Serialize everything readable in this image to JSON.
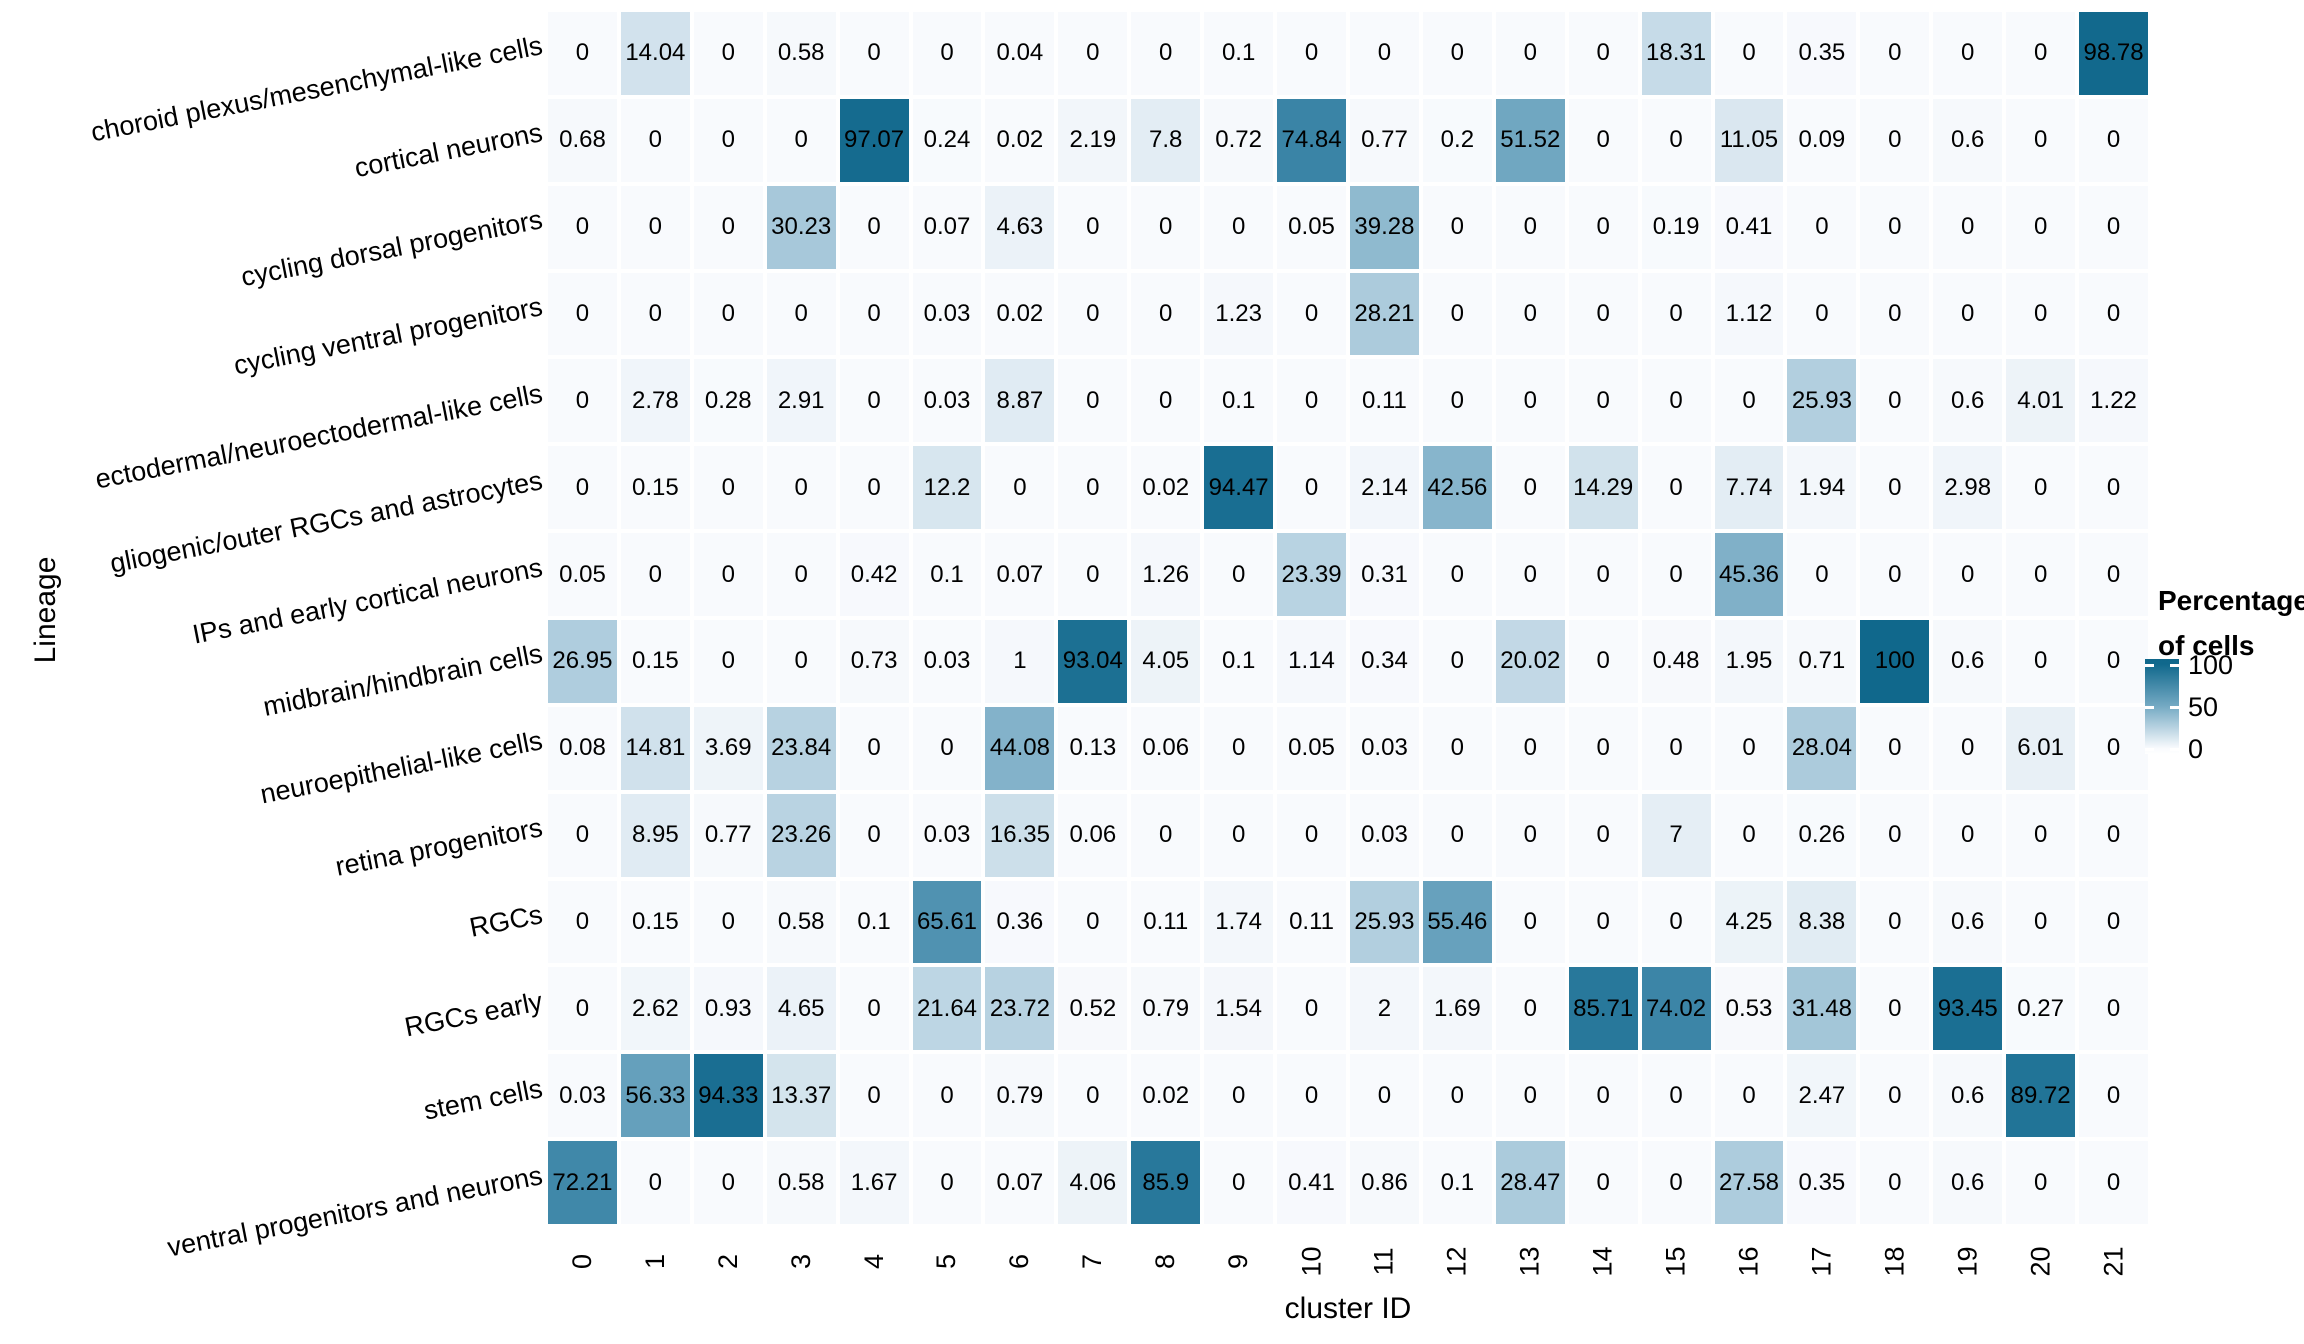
{
  "chart_data": {
    "type": "heatmap",
    "title": "",
    "xlabel": "cluster ID",
    "ylabel": "Lineage",
    "columns": [
      "0",
      "1",
      "2",
      "3",
      "4",
      "5",
      "6",
      "7",
      "8",
      "9",
      "10",
      "11",
      "12",
      "13",
      "14",
      "15",
      "16",
      "17",
      "18",
      "19",
      "20",
      "21"
    ],
    "rows": [
      {
        "name": "choroid plexus/mesenchymal-like cells",
        "values": [
          0,
          14.04,
          0,
          0.58,
          0,
          0,
          0.04,
          0,
          0,
          0.1,
          0,
          0,
          0,
          0,
          0,
          18.31,
          0,
          0.35,
          0,
          0,
          0,
          98.78
        ]
      },
      {
        "name": "cortical neurons",
        "values": [
          0.68,
          0,
          0,
          0,
          97.07,
          0.24,
          0.02,
          2.19,
          7.8,
          0.72,
          74.84,
          0.77,
          0.2,
          51.52,
          0,
          0,
          11.05,
          0.09,
          0,
          0.6,
          0,
          0
        ]
      },
      {
        "name": "cycling dorsal progenitors",
        "values": [
          0,
          0,
          0,
          30.23,
          0,
          0.07,
          4.63,
          0,
          0,
          0,
          0.05,
          39.28,
          0,
          0,
          0,
          0.19,
          0.41,
          0,
          0,
          0,
          0,
          0
        ]
      },
      {
        "name": "cycling ventral progenitors",
        "values": [
          0,
          0,
          0,
          0,
          0,
          0.03,
          0.02,
          0,
          0,
          1.23,
          0,
          28.21,
          0,
          0,
          0,
          0,
          1.12,
          0,
          0,
          0,
          0,
          0
        ]
      },
      {
        "name": "ectodermal/neuroectodermal-like cells",
        "values": [
          0,
          2.78,
          0.28,
          2.91,
          0,
          0.03,
          8.87,
          0,
          0,
          0.1,
          0,
          0.11,
          0,
          0,
          0,
          0,
          0,
          25.93,
          0,
          0.6,
          4.01,
          1.22
        ]
      },
      {
        "name": "gliogenic/outer RGCs and astrocytes",
        "values": [
          0,
          0.15,
          0,
          0,
          0,
          12.2,
          0,
          0,
          0.02,
          94.47,
          0,
          2.14,
          42.56,
          0,
          14.29,
          0,
          7.74,
          1.94,
          0,
          2.98,
          0,
          0
        ]
      },
      {
        "name": "IPs and early cortical neurons",
        "values": [
          0.05,
          0,
          0,
          0,
          0.42,
          0.1,
          0.07,
          0,
          1.26,
          0,
          23.39,
          0.31,
          0,
          0,
          0,
          0,
          45.36,
          0,
          0,
          0,
          0,
          0
        ]
      },
      {
        "name": "midbrain/hindbrain cells",
        "values": [
          26.95,
          0.15,
          0,
          0,
          0.73,
          0.03,
          1,
          93.04,
          4.05,
          0.1,
          1.14,
          0.34,
          0,
          20.02,
          0,
          0.48,
          1.95,
          0.71,
          100,
          0.6,
          0,
          0
        ]
      },
      {
        "name": "neuroepithelial-like cells",
        "values": [
          0.08,
          14.81,
          3.69,
          23.84,
          0,
          0,
          44.08,
          0.13,
          0.06,
          0,
          0.05,
          0.03,
          0,
          0,
          0,
          0,
          0,
          28.04,
          0,
          0,
          6.01,
          0
        ]
      },
      {
        "name": "retina progenitors",
        "values": [
          0,
          8.95,
          0.77,
          23.26,
          0,
          0.03,
          16.35,
          0.06,
          0,
          0,
          0,
          0.03,
          0,
          0,
          0,
          7,
          0,
          0.26,
          0,
          0,
          0,
          0
        ]
      },
      {
        "name": "RGCs",
        "values": [
          0,
          0.15,
          0,
          0.58,
          0.1,
          65.61,
          0.36,
          0,
          0.11,
          1.74,
          0.11,
          25.93,
          55.46,
          0,
          0,
          0,
          4.25,
          8.38,
          0,
          0.6,
          0,
          0
        ]
      },
      {
        "name": "RGCs early",
        "values": [
          0,
          2.62,
          0.93,
          4.65,
          0,
          21.64,
          23.72,
          0.52,
          0.79,
          1.54,
          0,
          2,
          1.69,
          0,
          85.71,
          74.02,
          0.53,
          31.48,
          0,
          93.45,
          0.27,
          0
        ]
      },
      {
        "name": "stem cells",
        "values": [
          0.03,
          56.33,
          94.33,
          13.37,
          0,
          0,
          0.79,
          0,
          0.02,
          0,
          0,
          0,
          0,
          0,
          0,
          0,
          0,
          2.47,
          0,
          0.6,
          89.72,
          0
        ]
      },
      {
        "name": "ventral progenitors and neurons",
        "values": [
          72.21,
          0,
          0,
          0.58,
          1.67,
          0,
          0.07,
          4.06,
          85.9,
          0,
          0.41,
          0.86,
          0.1,
          28.47,
          0,
          0,
          27.58,
          0.35,
          0,
          0.6,
          0,
          0
        ]
      }
    ],
    "legend": {
      "title": "Percentage of cells",
      "title_line1": "Percentage",
      "title_line2": "of cells",
      "position": "right",
      "ticks": [
        "100",
        "50",
        "0"
      ]
    },
    "value_range": [
      0,
      100
    ],
    "grid": false,
    "colors": {
      "high": "#10688c",
      "mid": "#74a9c3",
      "low": "#f8fafd",
      "gap": "#ffffff",
      "cell_text": "#000000"
    }
  }
}
